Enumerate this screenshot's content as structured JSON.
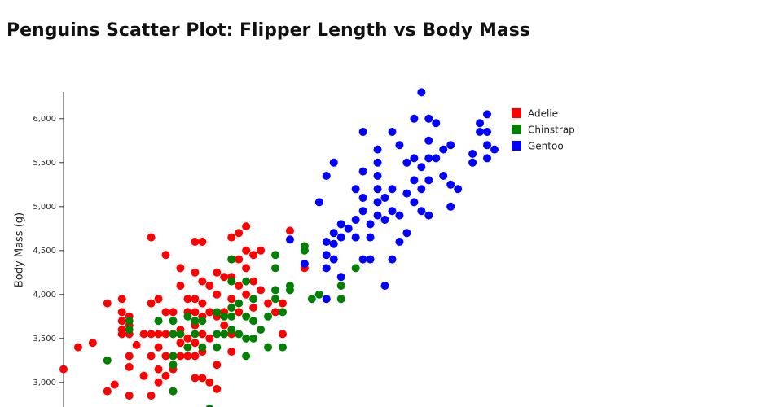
{
  "chart_data": {
    "type": "scatter",
    "title": "Penguins Scatter Plot: Flipper Length vs Body Mass",
    "y_label": "Body Mass (g)",
    "xlim": [
      172,
      231
    ],
    "ylim": [
      2700,
      6300
    ],
    "yticks": [
      {
        "value": 3000,
        "label": "3,000"
      },
      {
        "value": 3500,
        "label": "3,500"
      },
      {
        "value": 4000,
        "label": "4,000"
      },
      {
        "value": 4500,
        "label": "4,500"
      },
      {
        "value": 5000,
        "label": "5,000"
      },
      {
        "value": 5500,
        "label": "5,500"
      },
      {
        "value": 6000,
        "label": "6,000"
      }
    ],
    "grid": false,
    "series": [
      {
        "name": "Adelie",
        "color": "#ff0000",
        "x": [
          172,
          174,
          176,
          178,
          178,
          179,
          180,
          180,
          180,
          180,
          180,
          181,
          181,
          181,
          181,
          181,
          181,
          182,
          183,
          183,
          184,
          184,
          184,
          184,
          184,
          185,
          185,
          185,
          185,
          185,
          186,
          186,
          186,
          186,
          186,
          187,
          187,
          187,
          187,
          187,
          188,
          188,
          188,
          188,
          188,
          189,
          189,
          189,
          189,
          190,
          190,
          190,
          190,
          190,
          190,
          190,
          190,
          191,
          191,
          191,
          191,
          191,
          191,
          191,
          192,
          192,
          192,
          192,
          193,
          193,
          193,
          193,
          193,
          194,
          194,
          194,
          195,
          195,
          195,
          195,
          195,
          195,
          196,
          196,
          196,
          196,
          197,
          197,
          197,
          197,
          198,
          198,
          198,
          199,
          199,
          200,
          201,
          202,
          202,
          203,
          205
        ],
        "values": [
          3150,
          3400,
          3450,
          3900,
          2900,
          2975,
          3950,
          3800,
          3700,
          3600,
          3550,
          3750,
          3650,
          3550,
          3300,
          3175,
          2850,
          3425,
          3550,
          3075,
          4650,
          3900,
          3550,
          3300,
          2850,
          3950,
          3550,
          3400,
          3150,
          3000,
          4450,
          3800,
          3550,
          3300,
          3075,
          3800,
          3550,
          3300,
          3150,
          2900,
          4300,
          4100,
          3600,
          3450,
          3300,
          3950,
          3800,
          3500,
          3300,
          4600,
          4250,
          3950,
          3800,
          3650,
          3450,
          3300,
          3050,
          4600,
          4150,
          3900,
          3750,
          3550,
          3350,
          3050,
          4100,
          3800,
          3500,
          3000,
          4250,
          4000,
          3750,
          3200,
          2925,
          4200,
          3800,
          3650,
          4650,
          4400,
          4200,
          3950,
          3550,
          3350,
          4700,
          4400,
          4100,
          3800,
          4775,
          4500,
          4300,
          4000,
          4450,
          4150,
          3850,
          4500,
          4050,
          3900,
          3800,
          3550,
          3900,
          4725,
          4300
        ]
      },
      {
        "name": "Chinstrap",
        "color": "#008000",
        "x": [
          178,
          181,
          181,
          185,
          187,
          187,
          187,
          187,
          187,
          188,
          189,
          189,
          190,
          190,
          191,
          191,
          192,
          193,
          193,
          193,
          194,
          194,
          195,
          195,
          195,
          195,
          195,
          196,
          196,
          197,
          197,
          197,
          197,
          198,
          198,
          198,
          199,
          200,
          200,
          201,
          201,
          201,
          201,
          202,
          202,
          203,
          203,
          205,
          205,
          206,
          207,
          210,
          210,
          210,
          212
        ],
        "values": [
          3250,
          3700,
          3600,
          3700,
          3700,
          3550,
          3300,
          3200,
          2900,
          3550,
          3750,
          3400,
          3700,
          3550,
          3700,
          3400,
          2700,
          3800,
          3550,
          3400,
          3750,
          3550,
          4400,
          4150,
          3850,
          3750,
          3600,
          3900,
          3550,
          4150,
          3750,
          3500,
          3300,
          3950,
          3700,
          3500,
          3600,
          3750,
          3400,
          4450,
          4300,
          4050,
          3950,
          3800,
          3400,
          4100,
          4050,
          4550,
          4500,
          3950,
          4000,
          3950,
          4100,
          4800,
          4300
        ]
      },
      {
        "name": "Gentoo",
        "color": "#0000ff",
        "x": [
          203,
          205,
          207,
          208,
          208,
          208,
          208,
          208,
          209,
          209,
          209,
          209,
          210,
          210,
          210,
          211,
          212,
          212,
          212,
          213,
          213,
          213,
          213,
          213,
          214,
          214,
          214,
          215,
          215,
          215,
          215,
          215,
          215,
          216,
          216,
          216,
          217,
          217,
          217,
          217,
          218,
          218,
          218,
          219,
          219,
          219,
          220,
          220,
          220,
          220,
          221,
          221,
          221,
          221,
          222,
          222,
          222,
          222,
          222,
          223,
          223,
          224,
          224,
          225,
          225,
          225,
          226,
          228,
          228,
          229,
          229,
          230,
          230,
          230,
          230,
          231
        ],
        "values": [
          4625,
          4350,
          5050,
          5350,
          3950,
          4600,
          4450,
          4300,
          5500,
          4700,
          4575,
          4400,
          4800,
          4650,
          4200,
          4750,
          5200,
          4850,
          4650,
          5850,
          5400,
          5100,
          4950,
          4400,
          4800,
          4650,
          4400,
          5650,
          5500,
          5350,
          5200,
          5050,
          4900,
          5100,
          4850,
          4100,
          5850,
          5200,
          4950,
          4400,
          5700,
          4900,
          4600,
          5500,
          5150,
          4700,
          6000,
          5550,
          5300,
          5050,
          6300,
          5450,
          5200,
          4950,
          6000,
          5750,
          5550,
          5300,
          4900,
          5950,
          5550,
          5650,
          5350,
          5700,
          5250,
          5000,
          5200,
          5600,
          5500,
          5950,
          5850,
          6050,
          5850,
          5700,
          5550,
          5650
        ]
      }
    ]
  }
}
